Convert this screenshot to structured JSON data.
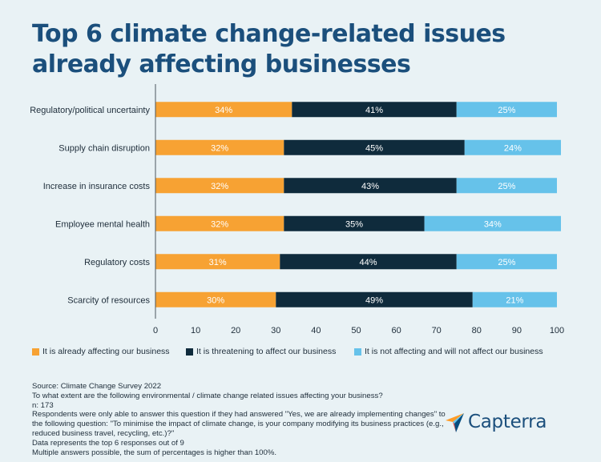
{
  "title_lines": [
    "Top 6 climate change-related issues",
    "already affecting businesses"
  ],
  "colors": {
    "affecting": "#f7a233",
    "threatening": "#0f2b3c",
    "not_affecting": "#66c2ea",
    "title": "#1b4f7c",
    "background": "#e9f2f5"
  },
  "chart_data": {
    "type": "bar",
    "orientation": "horizontal",
    "stacked": true,
    "categories": [
      "Regulatory/political uncertainty",
      "Supply chain disruption",
      "Increase in insurance costs",
      "Employee mental health",
      "Regulatory costs",
      "Scarcity of resources"
    ],
    "series": [
      {
        "name": "It is already affecting our business",
        "color": "#f7a233",
        "values": [
          34,
          32,
          32,
          32,
          31,
          30
        ]
      },
      {
        "name": "It is threatening to affect our business",
        "color": "#0f2b3c",
        "values": [
          41,
          45,
          43,
          35,
          44,
          49
        ]
      },
      {
        "name": "It is not affecting and will not affect our business",
        "color": "#66c2ea",
        "values": [
          25,
          24,
          25,
          34,
          25,
          21
        ]
      }
    ],
    "data_labels": [
      [
        "34%",
        "41%",
        "25%"
      ],
      [
        "32%",
        "45%",
        "24%"
      ],
      [
        "32%",
        "43%",
        "25%"
      ],
      [
        "32%",
        "35%",
        "34%"
      ],
      [
        "31%",
        "44%",
        "25%"
      ],
      [
        "30%",
        "49%",
        "21%"
      ]
    ],
    "xticks": [
      0,
      10,
      20,
      30,
      40,
      50,
      60,
      70,
      80,
      90,
      100
    ],
    "xlim": [
      0,
      100
    ],
    "legend_position": "bottom",
    "grid": false
  },
  "footnotes": [
    "Source: Climate Change Survey 2022",
    "To what extent are the following environmental / climate change related issues affecting your business?",
    "n: 173",
    "Respondents were only able to answer this question if they had answered \"Yes, we are already implementing changes\" to the following question: \"To minimise the impact of climate change, is your company modifying its business practices (e.g., reduced business travel, recycling, etc.)?\"",
    "Data represents the top 6 responses out of 9",
    "Multiple answers possible, the sum of percentages is higher than 100%."
  ],
  "brand": {
    "name": "Capterra",
    "icon": "capterra-arrow-icon"
  }
}
